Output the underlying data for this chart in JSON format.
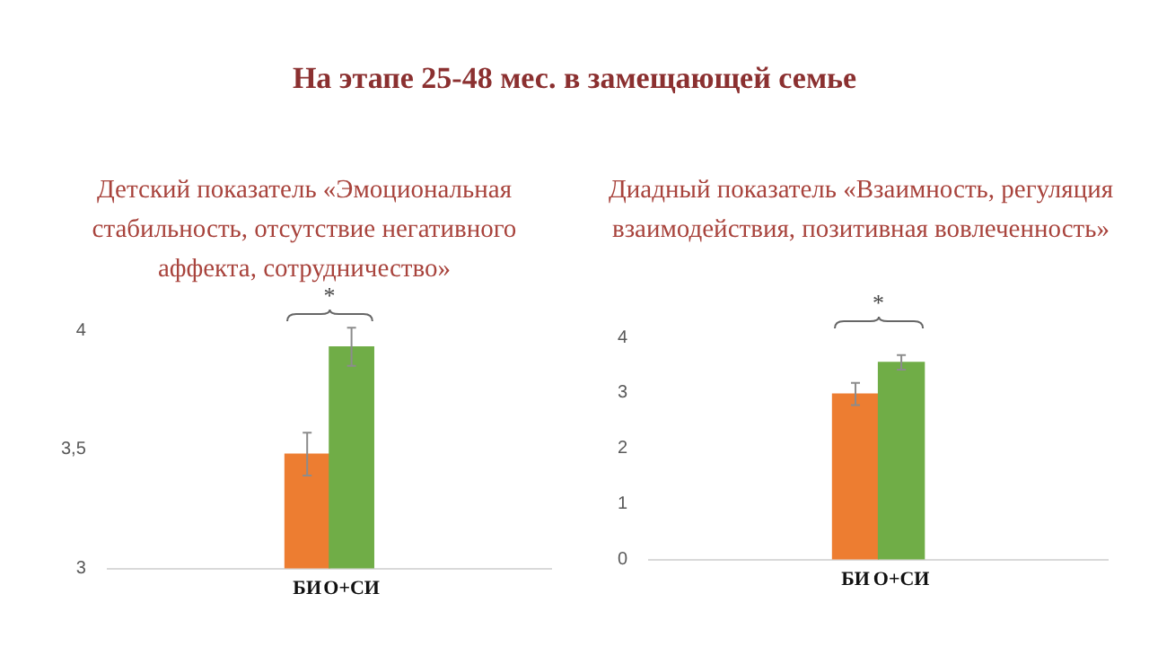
{
  "chart_data": [
    {
      "type": "bar",
      "title": "Детский показатель «Эмоциональная стабильность, отсутствие негативного аффекта, сотрудничество»",
      "categories": [
        "БИ",
        "О+СИ"
      ],
      "values": [
        3.48,
        3.93
      ],
      "colors": [
        "#ed7d31",
        "#70ad47"
      ],
      "errors": [
        0.09,
        0.08
      ],
      "ylim": [
        3,
        4
      ],
      "yticks": [
        3,
        {
          "value": 3.5,
          "label": "3,5"
        },
        4
      ],
      "annotations": [
        "На этапе 25-48 мес. в замещающей семье",
        "*"
      ]
    },
    {
      "type": "bar",
      "title": "Диадный показатель «Взаимность, регуляция взаимодействия, позитивная вовлеченность»",
      "categories": [
        "БИ",
        "О+СИ"
      ],
      "values": [
        2.98,
        3.55
      ],
      "colors": [
        "#ed7d31",
        "#70ad47"
      ],
      "errors": [
        0.2,
        0.13
      ],
      "ylim": [
        0,
        4
      ],
      "yticks": [
        0,
        1,
        2,
        3,
        4
      ],
      "annotations": [
        "*"
      ]
    }
  ]
}
